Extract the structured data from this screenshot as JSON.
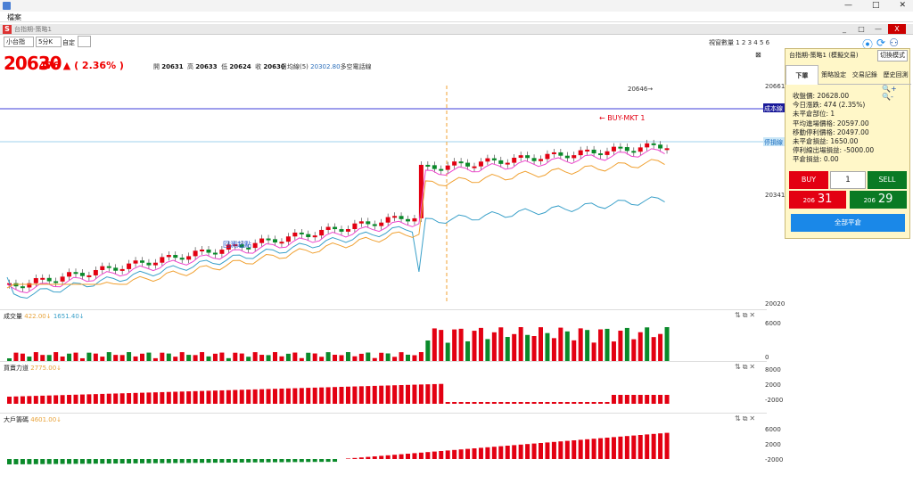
{
  "window": {
    "menu": "檔案",
    "inner_title": "台指期-策略1",
    "win_min": "—",
    "win_max": "□",
    "win_close": "✕"
  },
  "inner_buttons": [
    "_",
    "□",
    "—",
    "X"
  ],
  "toolbar": {
    "product": "小台指",
    "period": "5分K",
    "custom": "自定",
    "pages_label": "視窗數量 1 2 3 4 5 6"
  },
  "quote": {
    "price": "20630",
    "change": "476 ▲ ( 2.36% )",
    "o_label": "開",
    "o": "20631",
    "h_label": "高",
    "h": "20633",
    "l_label": "低",
    "l": "20624",
    "c_label": "收",
    "c": "20630",
    "ma_label": "日均線(5)",
    "ma_value": "20302.80",
    "ma_suffix": "多空電話線"
  },
  "chart": {
    "price_axis": [
      "20661",
      "20341",
      "20020"
    ],
    "cost_label": "成本線",
    "stop_label": "停損線",
    "annot_high": "20646→",
    "annot_buy": "← BUY-MKT 1",
    "annot_mid": "回測起點",
    "volume": {
      "name": "成交量",
      "v1": "422.00↓",
      "v2": "1651.40↓",
      "axis": [
        "6000",
        "0"
      ]
    },
    "power": {
      "name": "買賣力道",
      "v1": "2775.00↓",
      "axis": [
        "8000",
        "2000",
        "-2000"
      ]
    },
    "large": {
      "name": "大戶籌碼",
      "v1": "4601.00↓",
      "axis": [
        "6000",
        "2000",
        "-2000"
      ]
    }
  },
  "trade": {
    "title": "台指期-策略1 (模擬交易)",
    "switch": "切換模式",
    "tabs": [
      "下單",
      "策略設定",
      "交易記錄",
      "歷史回測"
    ],
    "info": [
      "收盤價: 20628.00",
      "今日漲跌: 474 (2.35%)",
      "未平倉部位: 1",
      "平均進場價格: 20597.00",
      "移動停利價格: 20497.00",
      "未平倉損益: 1650.00",
      "停利線出場損益: -5000.00",
      "平倉損益: 0.00"
    ],
    "buy": "BUY",
    "qty": "1",
    "sell": "SELL",
    "bid_small": "206",
    "bid_large": "31",
    "ask_small": "206",
    "ask_large": "29",
    "flat": "全部平倉"
  },
  "colors": {
    "up": "#e30012",
    "down": "#0a8a2a",
    "ma_line": "#3aa0c9",
    "stop_line": "#ee44cc",
    "avg": "#f0a030"
  }
}
